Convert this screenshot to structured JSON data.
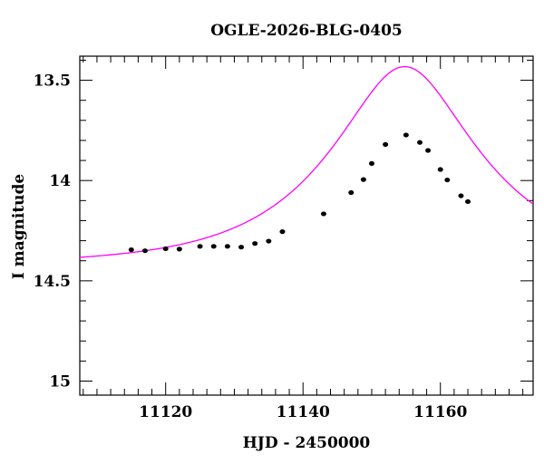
{
  "chart_data": {
    "type": "scatter",
    "title": "OGLE-2026-BLG-0405",
    "xlabel": "HJD - 2450000",
    "ylabel": "I magnitude",
    "xlim": [
      11107.5,
      11173.5
    ],
    "ylim": [
      15.07,
      13.38
    ],
    "y_inverted": true,
    "xticks": [
      11120,
      11140,
      11160
    ],
    "xtick_labels": [
      "11120",
      "11140",
      "11160"
    ],
    "yticks": [
      13.5,
      14,
      14.5,
      15
    ],
    "ytick_labels": [
      "13.5",
      "14",
      "14.5",
      "15"
    ],
    "x_minor_step": 2,
    "y_minor_step": 0.1,
    "grid": false,
    "fit_color": "#ff00ff",
    "point_color": "#000000",
    "fit_model": {
      "t0": 11154.8,
      "tE": 20,
      "u0": 0.43,
      "baseline_mag": 14.42
    },
    "series": [
      {
        "values": [
          {
            "x": 11115.0,
            "y": 14.345
          },
          {
            "x": 11117.0,
            "y": 14.35
          },
          {
            "x": 11120.0,
            "y": 14.34
          },
          {
            "x": 11122.0,
            "y": 14.342
          },
          {
            "x": 11125.0,
            "y": 14.328
          },
          {
            "x": 11127.0,
            "y": 14.328
          },
          {
            "x": 11129.0,
            "y": 14.328
          },
          {
            "x": 11131.0,
            "y": 14.332
          },
          {
            "x": 11133.0,
            "y": 14.314
          },
          {
            "x": 11135.0,
            "y": 14.302
          },
          {
            "x": 11137.0,
            "y": 14.255
          },
          {
            "x": 11143.0,
            "y": 14.166
          },
          {
            "x": 11147.0,
            "y": 14.06
          },
          {
            "x": 11148.8,
            "y": 13.995
          },
          {
            "x": 11150.0,
            "y": 13.915
          },
          {
            "x": 11152.0,
            "y": 13.82
          },
          {
            "x": 11155.0,
            "y": 13.773
          },
          {
            "x": 11157.0,
            "y": 13.81
          },
          {
            "x": 11158.2,
            "y": 13.85
          },
          {
            "x": 11160.0,
            "y": 13.945
          },
          {
            "x": 11161.0,
            "y": 13.997
          },
          {
            "x": 11163.0,
            "y": 14.076
          },
          {
            "x": 11164.0,
            "y": 14.105
          }
        ]
      }
    ]
  }
}
